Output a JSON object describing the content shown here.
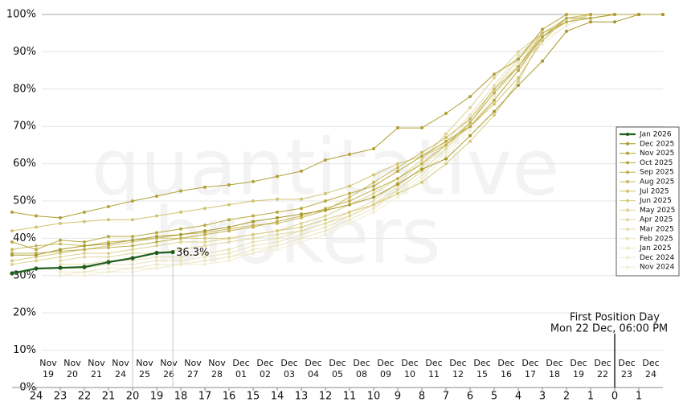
{
  "chart_data": {
    "type": "line",
    "watermark": [
      "quantitative",
      "brokers"
    ],
    "xlim": [
      -1,
      26
    ],
    "ylim": [
      0,
      100
    ],
    "yticks": [
      {
        "value": 0,
        "label": "0%"
      },
      {
        "value": 10,
        "label": "10%"
      },
      {
        "value": 20,
        "label": "20%"
      },
      {
        "value": 30,
        "label": "30%"
      },
      {
        "value": 40,
        "label": "40%"
      },
      {
        "value": 50,
        "label": "50%"
      },
      {
        "value": 60,
        "label": "60%"
      },
      {
        "value": 70,
        "label": "70%"
      },
      {
        "value": 80,
        "label": "80%"
      },
      {
        "value": 90,
        "label": "90%"
      },
      {
        "value": 100,
        "label": "100%"
      }
    ],
    "grid": true,
    "xticks": [
      {
        "value": 0,
        "label": "24"
      },
      {
        "value": 1,
        "label": "23"
      },
      {
        "value": 2,
        "label": "22"
      },
      {
        "value": 3,
        "label": "21"
      },
      {
        "value": 4,
        "label": "20"
      },
      {
        "value": 5,
        "label": "19"
      },
      {
        "value": 6,
        "label": "18"
      },
      {
        "value": 7,
        "label": "17"
      },
      {
        "value": 8,
        "label": "16"
      },
      {
        "value": 9,
        "label": "15"
      },
      {
        "value": 10,
        "label": "14"
      },
      {
        "value": 11,
        "label": "13"
      },
      {
        "value": 12,
        "label": "12"
      },
      {
        "value": 13,
        "label": "11"
      },
      {
        "value": 14,
        "label": "10"
      },
      {
        "value": 15,
        "label": "9"
      },
      {
        "value": 16,
        "label": "8"
      },
      {
        "value": 17,
        "label": "7"
      },
      {
        "value": 18,
        "label": "6"
      },
      {
        "value": 19,
        "label": "5"
      },
      {
        "value": 20,
        "label": "4"
      },
      {
        "value": 21,
        "label": "3"
      },
      {
        "value": 22,
        "label": "2"
      },
      {
        "value": 23,
        "label": "1"
      },
      {
        "value": 24,
        "label": "0"
      },
      {
        "value": 25,
        "label": "1"
      }
    ],
    "date_ticks": [
      {
        "value": 0.5,
        "label": [
          "Nov",
          "19"
        ]
      },
      {
        "value": 1.5,
        "label": [
          "Nov",
          "20"
        ]
      },
      {
        "value": 2.5,
        "label": [
          "Nov",
          "21"
        ]
      },
      {
        "value": 3.5,
        "label": [
          "Nov",
          "24"
        ]
      },
      {
        "value": 4.5,
        "label": [
          "Nov",
          "25"
        ]
      },
      {
        "value": 5.5,
        "label": [
          "Nov",
          "26"
        ]
      },
      {
        "value": 6.5,
        "label": [
          "Nov",
          "27"
        ]
      },
      {
        "value": 7.5,
        "label": [
          "Nov",
          "28"
        ]
      },
      {
        "value": 8.5,
        "label": [
          "Dec",
          "01"
        ]
      },
      {
        "value": 9.5,
        "label": [
          "Dec",
          "02"
        ]
      },
      {
        "value": 10.5,
        "label": [
          "Dec",
          "03"
        ]
      },
      {
        "value": 11.5,
        "label": [
          "Dec",
          "04"
        ]
      },
      {
        "value": 12.5,
        "label": [
          "Dec",
          "05"
        ]
      },
      {
        "value": 13.5,
        "label": [
          "Dec",
          "08"
        ]
      },
      {
        "value": 14.5,
        "label": [
          "Dec",
          "09"
        ]
      },
      {
        "value": 15.5,
        "label": [
          "Dec",
          "10"
        ]
      },
      {
        "value": 16.5,
        "label": [
          "Dec",
          "11"
        ]
      },
      {
        "value": 17.5,
        "label": [
          "Dec",
          "12"
        ]
      },
      {
        "value": 18.5,
        "label": [
          "Dec",
          "15"
        ]
      },
      {
        "value": 19.5,
        "label": [
          "Dec",
          "16"
        ]
      },
      {
        "value": 20.5,
        "label": [
          "Dec",
          "17"
        ]
      },
      {
        "value": 21.5,
        "label": [
          "Dec",
          "18"
        ]
      },
      {
        "value": 22.5,
        "label": [
          "Dec",
          "19"
        ]
      },
      {
        "value": 23.5,
        "label": [
          "Dec",
          "22"
        ]
      },
      {
        "value": 24.5,
        "label": [
          "Dec",
          "23"
        ]
      },
      {
        "value": 25.5,
        "label": [
          "Dec",
          "24"
        ]
      }
    ],
    "fpd": {
      "x": 24,
      "label": [
        "First Position Day",
        "Mon 22 Dec, 06:00 PM"
      ]
    },
    "legend": "right",
    "x": [
      -1,
      0,
      1,
      2,
      3,
      4,
      5,
      6,
      7,
      8,
      9,
      10,
      11,
      12,
      13,
      14,
      15,
      16,
      17,
      18,
      19,
      20,
      21,
      22,
      23,
      24,
      25,
      26
    ],
    "series": [
      {
        "name": "Jan 2026",
        "color": "#1e5e1e",
        "x": [
          -1,
          0,
          1,
          2,
          3,
          4,
          5,
          5.67
        ],
        "values": [
          30.6,
          31.9,
          32.1,
          32.3,
          33.6,
          34.7,
          36.1,
          36.3
        ],
        "value_labels": [
          null,
          null,
          null,
          null,
          null,
          null,
          null,
          "36.3%"
        ]
      },
      {
        "name": "Dec 2025",
        "color": "#a8982a",
        "values": [
          35.5,
          35.5,
          37,
          38,
          38.5,
          39.5,
          40.5,
          41,
          42,
          43,
          44.5,
          45.5,
          46.5,
          47.5,
          49,
          51,
          54.5,
          58.5,
          61.3,
          67.5,
          74,
          81,
          87.5,
          95.5,
          98,
          98,
          100,
          100
        ]
      },
      {
        "name": "Nov 2025",
        "color": "#b0a035",
        "values": [
          47,
          46,
          45.5,
          47,
          48.5,
          50,
          51.3,
          52.7,
          53.7,
          54.3,
          55.2,
          56.6,
          58,
          61,
          62.5,
          64,
          69.6,
          69.6,
          73.5,
          78,
          84,
          88,
          96,
          100,
          100,
          100,
          100,
          100
        ]
      },
      {
        "name": "Oct 2025",
        "color": "#b8a840",
        "values": [
          39,
          37,
          39.5,
          39,
          40.5,
          40.5,
          41.5,
          42.5,
          43.5,
          45,
          46,
          47,
          48,
          50,
          52,
          54,
          58,
          62,
          66,
          70,
          77,
          85,
          94,
          99,
          99,
          100,
          100,
          100
        ]
      },
      {
        "name": "Sep 2025",
        "color": "#c0b050",
        "values": [
          36,
          36,
          36.5,
          37,
          37.5,
          38,
          39,
          40,
          41,
          42,
          43,
          44.5,
          46,
          48,
          50,
          53,
          56,
          60,
          65,
          71,
          79,
          86,
          94,
          98,
          99,
          100,
          100,
          100
        ]
      },
      {
        "name": "Aug 2025",
        "color": "#c8ba60",
        "values": [
          37,
          38,
          38.5,
          38,
          39,
          39.5,
          40,
          41,
          41.5,
          42.5,
          43.5,
          44,
          45.5,
          47.5,
          51,
          55,
          59,
          63,
          67,
          72,
          80,
          86,
          95,
          98,
          99,
          100,
          100,
          100
        ]
      },
      {
        "name": "Jul 2025",
        "color": "#d0c270",
        "values": [
          42,
          43,
          44,
          44.5,
          45,
          45,
          46,
          47,
          48,
          49,
          50,
          50.5,
          50.5,
          52,
          54,
          57,
          60,
          62,
          65,
          70,
          76,
          83,
          93,
          99,
          100,
          100,
          100,
          100
        ]
      },
      {
        "name": "Jun 2025",
        "color": "#d6ca80",
        "values": [
          34,
          35,
          36,
          37,
          38,
          39,
          40,
          40,
          40,
          40,
          41,
          42,
          43,
          45,
          47,
          49,
          52,
          55,
          60,
          66,
          73,
          82,
          94,
          99,
          100,
          100,
          100,
          100
        ]
      },
      {
        "name": "May 2025",
        "color": "#dcd290",
        "values": [
          33,
          34,
          35,
          36,
          36,
          37,
          38,
          39,
          39,
          40,
          41,
          42,
          44,
          46,
          49,
          52,
          56,
          61,
          68,
          75,
          83,
          90,
          95,
          99,
          100,
          100,
          100,
          100
        ]
      },
      {
        "name": "Apr 2025",
        "color": "#e0d8a0",
        "values": [
          null,
          null,
          34,
          35,
          35,
          36,
          36,
          37,
          38,
          39,
          40,
          41,
          42,
          44,
          46,
          49,
          53,
          58,
          64,
          71,
          80,
          88,
          95,
          98,
          100,
          100,
          100,
          100
        ]
      },
      {
        "name": "Mar 2025",
        "color": "#e6dfb0",
        "values": [
          null,
          null,
          33,
          33,
          34,
          34,
          35,
          35,
          36,
          37,
          39,
          40,
          42,
          44,
          47,
          50,
          55,
          60,
          66,
          73,
          81,
          89,
          95,
          98,
          100,
          100,
          100,
          100
        ]
      },
      {
        "name": "Feb 2025",
        "color": "#e9e3bb",
        "values": [
          null,
          null,
          32,
          32,
          33,
          33,
          34,
          34,
          35,
          36,
          38,
          39,
          41,
          43,
          46,
          49,
          54,
          59,
          65,
          72,
          80,
          88,
          94,
          98,
          100,
          100,
          100,
          100
        ]
      },
      {
        "name": "Jan 2025",
        "color": "#ece7c4",
        "values": [
          null,
          null,
          31,
          31,
          32,
          32,
          33,
          33,
          34,
          35,
          37,
          38,
          40,
          42,
          45,
          48,
          53,
          58,
          64,
          71,
          79,
          87,
          94,
          98,
          100,
          100,
          100,
          100
        ]
      },
      {
        "name": "Dec 2024",
        "color": "#efebcc",
        "values": [
          null,
          null,
          30,
          31,
          31,
          32,
          32,
          33,
          34,
          35,
          36,
          38,
          40,
          42,
          45,
          48,
          52,
          57,
          63,
          70,
          78,
          86,
          93,
          97,
          100,
          100,
          100,
          100
        ]
      },
      {
        "name": "Nov 2024",
        "color": "#f1eed4",
        "values": [
          null,
          null,
          30,
          30,
          31,
          31,
          32,
          33,
          33,
          34,
          36,
          37,
          39,
          41,
          44,
          47,
          51,
          56,
          62,
          69,
          77,
          85,
          92,
          97,
          100,
          100,
          100,
          100
        ]
      }
    ]
  }
}
